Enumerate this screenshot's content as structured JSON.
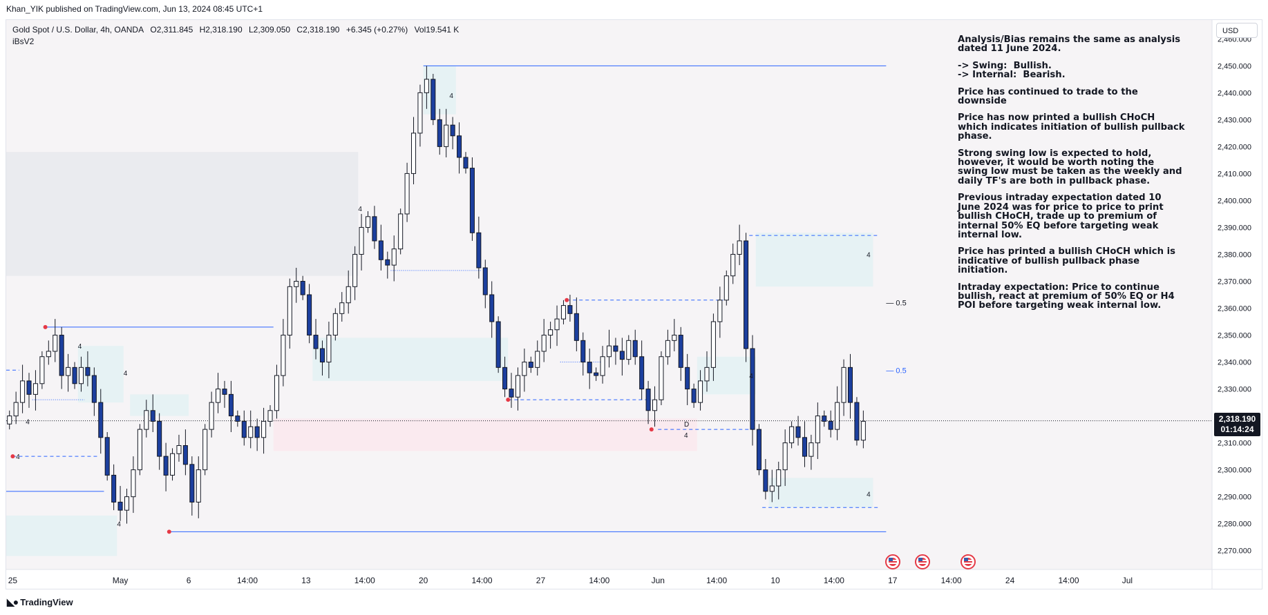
{
  "publish_bar": "Khan_YIK published on TradingView.com, Jun 13, 2024 08:45 UTC+1",
  "legend": {
    "symbol": "Gold Spot / U.S. Dollar, 4h, OANDA",
    "open": "O2,311.845",
    "high": "H2,318.190",
    "low": "L2,309.050",
    "close": "C2,318.190",
    "change": "+6.345 (+0.27%)",
    "volume": "Vol19.541 K",
    "indicator": "iBsV2"
  },
  "currency_button": "USD",
  "current_price": {
    "price": "2,318.190",
    "countdown": "01:14:24"
  },
  "notes": [
    "Analysis/Bias remains the same as analysis dated 11 June 2024.",
    "-> Swing:  Bullish.\n-> Internal:  Bearish.",
    "Price has continued to trade to the downside",
    "Price has now printed a bullish CHoCH which indicates initiation of bullish pullback phase.",
    "Strong swing low is expected to hold, however, it would be worth noting the swing low must be taken as the weekly and daily TF's are both in pullback phase.",
    "Previous intraday expectation dated 10 June 2024 was for price to price to print bullish CHoCH, trade up to premium of internal 50% EQ before targeting weak internal low.",
    "Price has printed a bullish CHoCH which is indicative of bullish pullback phase initiation.",
    "Intraday expectation: Price to continue bullish, react at premium of 50% EQ or H4 POI before targeting weak internal low."
  ],
  "brand": "TradingView",
  "chart_data": {
    "type": "candlestick",
    "timeframe": "4h",
    "y_axis": {
      "ticks": [
        2270,
        2280,
        2290,
        2300,
        2310,
        2320,
        2330,
        2340,
        2350,
        2360,
        2370,
        2380,
        2390,
        2400,
        2410,
        2420,
        2430,
        2440,
        2450,
        2460
      ],
      "tick_labels": [
        "2,270.000",
        "2,280.000",
        "2,290.000",
        "2,300.000",
        "2,310.000",
        "2,320.000",
        "2,330.000",
        "2,340.000",
        "2,350.000",
        "2,360.000",
        "2,370.000",
        "2,380.000",
        "2,390.000",
        "2,400.000",
        "2,410.000",
        "2,420.000",
        "2,430.000",
        "2,440.000",
        "2,450.000",
        "2,460.000"
      ],
      "range": [
        2263,
        2467
      ]
    },
    "x_axis": {
      "range": [
        0,
        185
      ],
      "ticks": [
        {
          "bar": 1,
          "label": "25"
        },
        {
          "bar": 17.5,
          "label": "May"
        },
        {
          "bar": 28,
          "label": "6"
        },
        {
          "bar": 37,
          "label": "14:00"
        },
        {
          "bar": 46,
          "label": "13"
        },
        {
          "bar": 55,
          "label": "14:00"
        },
        {
          "bar": 64,
          "label": "20"
        },
        {
          "bar": 73,
          "label": "14:00"
        },
        {
          "bar": 82,
          "label": "27"
        },
        {
          "bar": 91,
          "label": "14:00"
        },
        {
          "bar": 100,
          "label": "Jun"
        },
        {
          "bar": 109,
          "label": "14:00"
        },
        {
          "bar": 118,
          "label": "10"
        },
        {
          "bar": 127,
          "label": "14:00"
        },
        {
          "bar": 136,
          "label": "17"
        },
        {
          "bar": 145,
          "label": "14:00"
        },
        {
          "bar": 154,
          "label": "24"
        },
        {
          "bar": 163,
          "label": "14:00"
        },
        {
          "bar": 172,
          "label": "Jul"
        }
      ]
    },
    "close_path": [
      2320,
      2325,
      2333,
      2328,
      2332,
      2342,
      2344,
      2350,
      2335,
      2338,
      2332,
      2338,
      2335,
      2325,
      2312,
      2298,
      2288,
      2285,
      2290,
      2300,
      2315,
      2322,
      2318,
      2305,
      2298,
      2306,
      2309,
      2302,
      2288,
      2300,
      2315,
      2325,
      2330,
      2328,
      2320,
      2318,
      2312,
      2316,
      2312,
      2318,
      2322,
      2335,
      2350,
      2368,
      2370,
      2365,
      2350,
      2345,
      2340,
      2350,
      2358,
      2362,
      2368,
      2380,
      2390,
      2394,
      2385,
      2378,
      2376,
      2382,
      2395,
      2410,
      2425,
      2440,
      2445,
      2430,
      2420,
      2428,
      2424,
      2416,
      2412,
      2388,
      2375,
      2365,
      2355,
      2338,
      2330,
      2327,
      2335,
      2340,
      2338,
      2344,
      2350,
      2352,
      2356,
      2361,
      2358,
      2348,
      2340,
      2336,
      2335,
      2342,
      2346,
      2344,
      2341,
      2348,
      2342,
      2330,
      2322,
      2326,
      2342,
      2348,
      2350,
      2338,
      2330,
      2325,
      2333,
      2338,
      2355,
      2363,
      2372,
      2380,
      2385,
      2345,
      2315,
      2300,
      2292,
      2294,
      2300,
      2310,
      2316,
      2312,
      2305,
      2310,
      2320,
      2318,
      2315,
      2325,
      2338,
      2325,
      2311,
      2318
    ],
    "zones": [
      {
        "name": "supply-grey",
        "color": "#e9eaee",
        "bar_from": 0,
        "bar_to": 54,
        "price_low": 2372,
        "price_high": 2418
      },
      {
        "name": "supply-pink",
        "color": "#fbe9ee",
        "bar_from": 41,
        "bar_to": 106,
        "price_low": 2307,
        "price_high": 2319
      },
      {
        "name": "demand-1",
        "color": "#e4f2f4",
        "bar_from": 0,
        "bar_to": 17,
        "price_low": 2268,
        "price_high": 2283
      },
      {
        "name": "demand-2",
        "color": "#e4f2f4",
        "bar_from": 11,
        "bar_to": 18,
        "price_low": 2325,
        "price_high": 2346
      },
      {
        "name": "demand-3",
        "color": "#e4f2f4",
        "bar_from": 47,
        "bar_to": 77,
        "price_low": 2333,
        "price_high": 2349
      },
      {
        "name": "demand-4",
        "color": "#e4f2f4",
        "bar_from": 64,
        "bar_to": 69,
        "price_low": 2432,
        "price_high": 2450
      },
      {
        "name": "demand-5",
        "color": "#e4f2f4",
        "bar_from": 19,
        "bar_to": 28,
        "price_low": 2320,
        "price_high": 2328
      },
      {
        "name": "demand-6",
        "color": "#e4f2f4",
        "bar_from": 106,
        "bar_to": 115,
        "price_low": 2328,
        "price_high": 2342
      },
      {
        "name": "demand-7",
        "color": "#e4f2f4",
        "bar_from": 115,
        "bar_to": 133,
        "price_low": 2368,
        "price_high": 2388
      },
      {
        "name": "demand-8",
        "color": "#e4f2f4",
        "bar_from": 117,
        "bar_to": 133,
        "price_low": 2286,
        "price_high": 2297
      }
    ],
    "levels": [
      {
        "name": "swing-high",
        "price": 2450,
        "bar_from": 64,
        "bar_to": 135,
        "style": "solid"
      },
      {
        "name": "swing-low",
        "price": 2277,
        "bar_from": 25,
        "bar_to": 135,
        "style": "solid"
      },
      {
        "name": "bos-high",
        "price": 2353,
        "bar_from": 6,
        "bar_to": 41,
        "style": "solid"
      },
      {
        "name": "bos-low",
        "price": 2292,
        "bar_from": 0,
        "bar_to": 15,
        "style": "solid"
      },
      {
        "name": "choch-high",
        "price": 2387,
        "bar_from": 114,
        "bar_to": 134,
        "style": "dashed"
      },
      {
        "name": "internal-high",
        "price": 2363,
        "bar_from": 86,
        "bar_to": 110,
        "style": "dashed"
      },
      {
        "name": "internal-low",
        "price": 2326,
        "bar_from": 77,
        "bar_to": 99,
        "style": "dashed"
      },
      {
        "name": "weak-low",
        "price": 2286,
        "bar_from": 116,
        "bar_to": 134,
        "style": "dashed"
      },
      {
        "name": "low-left",
        "price": 2305,
        "bar_from": 1,
        "bar_to": 14,
        "style": "dashed"
      },
      {
        "name": "left-high-dash",
        "price": 2337,
        "bar_from": 0,
        "bar_to": 2,
        "style": "dashed"
      },
      {
        "name": "choch-level",
        "price": 2315,
        "bar_from": 100,
        "bar_to": 115,
        "style": "dashed"
      },
      {
        "name": "dotted-1",
        "price": 2374,
        "bar_from": 59,
        "bar_to": 73,
        "style": "dotted"
      },
      {
        "name": "dotted-2",
        "price": 2340,
        "bar_from": 85,
        "bar_to": 92,
        "style": "dotted"
      },
      {
        "name": "dotted-3",
        "price": 2326,
        "bar_from": 4,
        "bar_to": 12,
        "style": "dotted"
      }
    ],
    "eq_labels": [
      {
        "text": "0.5",
        "price": 2362,
        "bar": 135
      },
      {
        "text": "0.5",
        "price": 2337,
        "bar": 135
      }
    ],
    "zone_tags": [
      {
        "text": "4",
        "price": 2438,
        "bar": 68
      },
      {
        "text": "4",
        "price": 2396,
        "bar": 54
      },
      {
        "text": "4",
        "price": 2345,
        "bar": 11
      },
      {
        "text": "4",
        "price": 2335,
        "bar": 18
      },
      {
        "text": "4",
        "price": 2317,
        "bar": 3
      },
      {
        "text": "4",
        "price": 2304,
        "bar": 1.5
      },
      {
        "text": "4",
        "price": 2279,
        "bar": 17
      },
      {
        "text": "4",
        "price": 2379,
        "bar": 132
      },
      {
        "text": "4",
        "price": 2290,
        "bar": 132
      },
      {
        "text": "4",
        "price": 2334,
        "bar": 114
      },
      {
        "text": "4",
        "price": 2312,
        "bar": 104
      },
      {
        "text": "D",
        "price": 2316,
        "bar": 104
      }
    ],
    "pivots": [
      {
        "price": 2353,
        "bar": 6
      },
      {
        "price": 2363,
        "bar": 86
      },
      {
        "price": 2326,
        "bar": 77
      },
      {
        "price": 2305,
        "bar": 1
      },
      {
        "price": 2277,
        "bar": 25
      },
      {
        "price": 2315,
        "bar": 99
      }
    ],
    "current_price": 2318.19
  }
}
